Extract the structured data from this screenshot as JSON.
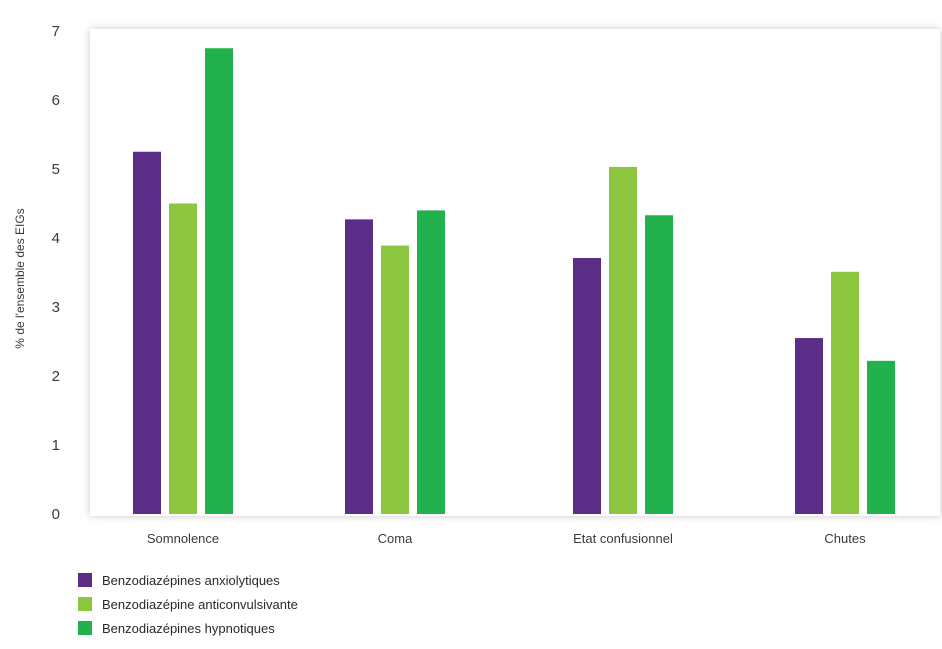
{
  "chart_data": {
    "type": "bar",
    "ylabel": "% de l'ensemble des EIGs",
    "xlabel": "",
    "ylim": [
      0,
      7
    ],
    "yticks": [
      "0",
      "1",
      "2",
      "3",
      "4",
      "5",
      "6",
      "7"
    ],
    "categories": [
      "Somnolence",
      "Coma",
      "Etat confusionnel",
      "Chutes"
    ],
    "series": [
      {
        "name": "Benzodiazépines anxiolytiques",
        "color": "#5b2d86",
        "values": [
          5.25,
          4.27,
          3.71,
          2.55
        ]
      },
      {
        "name": "Benzodiazépine anticonvulsivante",
        "color": "#8cc63f",
        "values": [
          4.5,
          3.89,
          5.03,
          3.51
        ]
      },
      {
        "name": "Benzodiazépines hypnotiques",
        "color": "#22b14c",
        "values": [
          6.75,
          4.4,
          4.33,
          2.22
        ]
      }
    ],
    "grid": false,
    "legend_position": "bottom-left"
  }
}
